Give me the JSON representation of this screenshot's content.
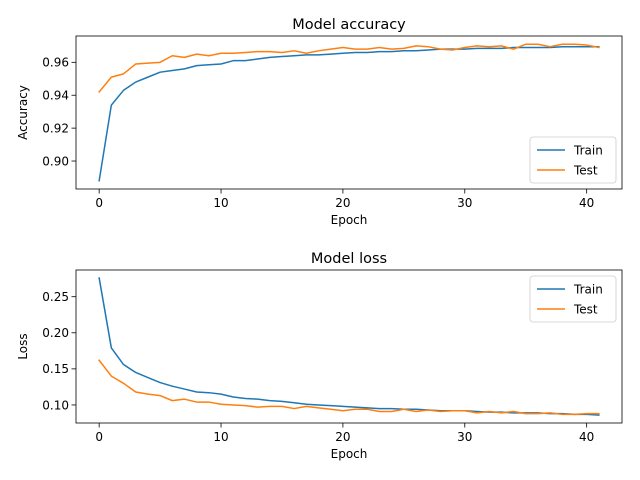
{
  "chart_data": [
    {
      "type": "line",
      "title": "Model accuracy",
      "xlabel": "Epoch",
      "ylabel": "Accuracy",
      "xlim": [
        -1.9,
        42.9
      ],
      "ylim": [
        0.883,
        0.976
      ],
      "xticks": [
        0,
        10,
        20,
        30,
        40
      ],
      "yticks": [
        0.9,
        0.92,
        0.94,
        0.96
      ],
      "ytick_decimals": 2,
      "legend_position": "lower-right",
      "grid": false,
      "x": [
        0,
        1,
        2,
        3,
        4,
        5,
        6,
        7,
        8,
        9,
        10,
        11,
        12,
        13,
        14,
        15,
        16,
        17,
        18,
        19,
        20,
        21,
        22,
        23,
        24,
        25,
        26,
        27,
        28,
        29,
        30,
        31,
        32,
        33,
        34,
        35,
        36,
        37,
        38,
        39,
        40,
        41
      ],
      "series": [
        {
          "name": "Train",
          "color": "#1f77b4",
          "values": [
            0.888,
            0.934,
            0.943,
            0.948,
            0.951,
            0.954,
            0.955,
            0.956,
            0.958,
            0.9585,
            0.959,
            0.961,
            0.961,
            0.962,
            0.963,
            0.9635,
            0.964,
            0.9645,
            0.9645,
            0.965,
            0.9655,
            0.966,
            0.966,
            0.9665,
            0.9665,
            0.967,
            0.967,
            0.9675,
            0.968,
            0.968,
            0.968,
            0.9685,
            0.9685,
            0.9685,
            0.969,
            0.969,
            0.969,
            0.969,
            0.9695,
            0.9695,
            0.9695,
            0.9695
          ]
        },
        {
          "name": "Test",
          "color": "#ff7f0e",
          "values": [
            0.942,
            0.951,
            0.953,
            0.959,
            0.9595,
            0.96,
            0.964,
            0.963,
            0.965,
            0.964,
            0.9655,
            0.9655,
            0.966,
            0.9665,
            0.9665,
            0.966,
            0.967,
            0.9655,
            0.967,
            0.968,
            0.969,
            0.968,
            0.968,
            0.969,
            0.968,
            0.9685,
            0.97,
            0.9695,
            0.968,
            0.9675,
            0.969,
            0.97,
            0.9695,
            0.97,
            0.968,
            0.971,
            0.971,
            0.9695,
            0.971,
            0.971,
            0.9705,
            0.969
          ]
        }
      ]
    },
    {
      "type": "line",
      "title": "Model loss",
      "xlabel": "Epoch",
      "ylabel": "Loss",
      "xlim": [
        -1.9,
        42.9
      ],
      "ylim": [
        0.075,
        0.287
      ],
      "xticks": [
        0,
        10,
        20,
        30,
        40
      ],
      "yticks": [
        0.1,
        0.15,
        0.2,
        0.25
      ],
      "ytick_decimals": 2,
      "legend_position": "upper-right",
      "grid": false,
      "x": [
        0,
        1,
        2,
        3,
        4,
        5,
        6,
        7,
        8,
        9,
        10,
        11,
        12,
        13,
        14,
        15,
        16,
        17,
        18,
        19,
        20,
        21,
        22,
        23,
        24,
        25,
        26,
        27,
        28,
        29,
        30,
        31,
        32,
        33,
        34,
        35,
        36,
        37,
        38,
        39,
        40,
        41
      ],
      "series": [
        {
          "name": "Train",
          "color": "#1f77b4",
          "values": [
            0.276,
            0.179,
            0.156,
            0.145,
            0.138,
            0.131,
            0.126,
            0.122,
            0.118,
            0.117,
            0.115,
            0.111,
            0.109,
            0.108,
            0.106,
            0.105,
            0.103,
            0.101,
            0.1,
            0.099,
            0.098,
            0.097,
            0.096,
            0.095,
            0.095,
            0.094,
            0.094,
            0.093,
            0.092,
            0.092,
            0.092,
            0.091,
            0.09,
            0.09,
            0.089,
            0.089,
            0.089,
            0.088,
            0.088,
            0.087,
            0.087,
            0.086
          ]
        },
        {
          "name": "Test",
          "color": "#ff7f0e",
          "values": [
            0.162,
            0.14,
            0.13,
            0.118,
            0.115,
            0.113,
            0.106,
            0.108,
            0.104,
            0.104,
            0.101,
            0.1,
            0.099,
            0.097,
            0.098,
            0.098,
            0.095,
            0.098,
            0.096,
            0.094,
            0.092,
            0.094,
            0.094,
            0.091,
            0.091,
            0.094,
            0.091,
            0.093,
            0.091,
            0.092,
            0.092,
            0.089,
            0.091,
            0.089,
            0.091,
            0.088,
            0.088,
            0.089,
            0.087,
            0.087,
            0.088,
            0.088
          ]
        }
      ]
    }
  ]
}
